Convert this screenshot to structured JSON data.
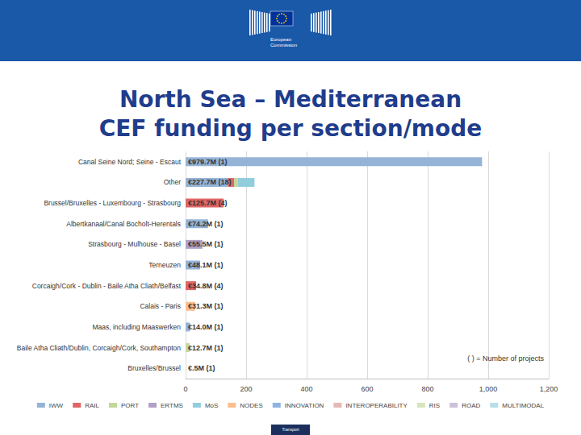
{
  "header": {
    "organization": [
      "European",
      "Commission"
    ]
  },
  "footer": "Transport",
  "chart_data": {
    "type": "bar",
    "orientation": "horizontal",
    "stacked": true,
    "grid": true,
    "legend": "bottom",
    "title": [
      "North Sea – Mediterranean",
      "CEF funding per section/mode"
    ],
    "annotations": [
      "( ) = Number of projects"
    ],
    "categories": [
      "Canal Seine Nord; Seine - Escaut",
      "Other",
      "Brussel/Bruxelles - Luxembourg - Strasbourg",
      "Albertkanaal/Canal Bocholt-Herentals",
      "Strasbourg - Mulhouse - Basel",
      "Terneuzen",
      "Corcaigh/Cork - Dublin - Baile Atha Cliath/Belfast",
      "Calais - Paris",
      "Maas, including Maaswerken",
      "Baile Atha Cliath/Dublin, Corcaigh/Cork, Southampton",
      "Bruxelles/Brussel"
    ],
    "series": [
      {
        "name": "IWW",
        "color": "#95b3d7",
        "values": [
          979.7,
          140,
          0,
          74.2,
          0,
          48.1,
          0,
          0,
          14.0,
          0,
          0
        ]
      },
      {
        "name": "RAIL",
        "color": "#e06666",
        "values": [
          0,
          20,
          125.7,
          0,
          0,
          0,
          34.8,
          0,
          0,
          0,
          0
        ]
      },
      {
        "name": "PORT",
        "color": "#c4d79b",
        "values": [
          0,
          12.7,
          0,
          0,
          0,
          0,
          0,
          0,
          0,
          12.7,
          0
        ]
      },
      {
        "name": "ERTMS",
        "color": "#b1a0c7",
        "values": [
          0,
          0,
          0,
          0,
          55.5,
          0,
          0,
          0,
          0,
          0,
          0
        ]
      },
      {
        "name": "MoS",
        "color": "#92cddc",
        "values": [
          0,
          55,
          0,
          0,
          0,
          0,
          0,
          0,
          0,
          0,
          0
        ]
      },
      {
        "name": "NODES",
        "color": "#fabf8f",
        "values": [
          0,
          0,
          0,
          0,
          0,
          0,
          0,
          31.3,
          0,
          0,
          0.5
        ]
      },
      {
        "name": "INNOVATION",
        "color": "#8eb4e3",
        "values": [
          0,
          0,
          0,
          0,
          0,
          0,
          0,
          0,
          0,
          0,
          0
        ]
      },
      {
        "name": "INTEROPERABILITY",
        "color": "#e6b8b7",
        "values": [
          0,
          0,
          0,
          0,
          0,
          0,
          0,
          0,
          0,
          0,
          0
        ]
      },
      {
        "name": "RIS",
        "color": "#d8e4bc",
        "values": [
          0,
          0,
          0,
          0,
          0,
          0,
          0,
          0,
          0,
          0,
          0
        ]
      },
      {
        "name": "ROAD",
        "color": "#ccc0da",
        "values": [
          0,
          0,
          0,
          0,
          0,
          0,
          0,
          0,
          0,
          0,
          0
        ]
      },
      {
        "name": "MULTIMODAL",
        "color": "#b7dee8",
        "values": [
          0,
          0,
          0,
          0,
          0,
          0,
          0,
          0,
          0,
          0,
          0
        ]
      }
    ],
    "totals": {
      "values": [
        979.7,
        227.7,
        125.7,
        74.2,
        55.5,
        48.1,
        34.8,
        31.3,
        14.0,
        12.7,
        0.5
      ],
      "value_labels": [
        "€979.7M (1)",
        "€227.7M (18)",
        "€125.7M (4)",
        "€74.2M (1)",
        "€55.5M (1)",
        "€48.1M (1)",
        "€34.8M (4)",
        "€31.3M (1)",
        "€14.0M (1)",
        "€12.7M (1)",
        "€.5M (1)"
      ]
    },
    "data_labels": true,
    "xlim": [
      0,
      1200
    ],
    "xticks": [
      0,
      200,
      400,
      600,
      800,
      1000,
      1200
    ]
  }
}
